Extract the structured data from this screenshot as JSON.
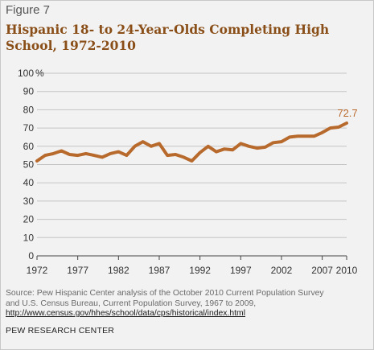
{
  "figure_label": "Figure 7",
  "chart_data": {
    "type": "line",
    "title": "Hispanic 18- to 24-Year-Olds Completing High School, 1972-2010",
    "xlabel": "",
    "ylabel": "",
    "y_unit": "%",
    "ylim": [
      0,
      100
    ],
    "yticks": [
      0,
      10,
      20,
      30,
      40,
      50,
      60,
      70,
      80,
      90,
      100
    ],
    "xlim": [
      1972,
      2010
    ],
    "xticks": [
      1972,
      1977,
      1982,
      1987,
      1992,
      1997,
      2002,
      2007,
      2010
    ],
    "grid": "horizontal",
    "line_color": "#b86a2d",
    "series": [
      {
        "x": [
          1972,
          1973,
          1974,
          1975,
          1976,
          1977,
          1978,
          1979,
          1980,
          1981,
          1982,
          1983,
          1984,
          1985,
          1986,
          1987,
          1988,
          1989,
          1990,
          1991,
          1992,
          1993,
          1994,
          1995,
          1996,
          1997,
          1998,
          1999,
          2000,
          2001,
          2002,
          2003,
          2004,
          2005,
          2006,
          2007,
          2008,
          2009,
          2010
        ],
        "values": [
          52.0,
          55.0,
          56.0,
          57.5,
          55.5,
          55.0,
          56.0,
          55.0,
          54.0,
          56.0,
          57.0,
          55.0,
          60.0,
          62.5,
          60.0,
          61.5,
          55.0,
          55.5,
          54.0,
          52.0,
          56.5,
          60.0,
          57.0,
          58.5,
          58.0,
          61.5,
          60.0,
          59.0,
          59.5,
          62.0,
          62.5,
          65.0,
          65.5,
          65.5,
          65.5,
          67.5,
          70.0,
          70.5,
          72.7
        ]
      }
    ],
    "annotation": {
      "x": 2010,
      "text": "72.7"
    }
  },
  "source": {
    "line1": "Source: Pew Hispanic Center analysis of the October 2010 Current Population Survey",
    "line2": "and U.S. Census Bureau, Current Population Survey, 1967 to 2009,",
    "link": "http://www.census.gov/hhes/school/data/cps/historical/index.html"
  },
  "organization": "PEW RESEARCH CENTER"
}
